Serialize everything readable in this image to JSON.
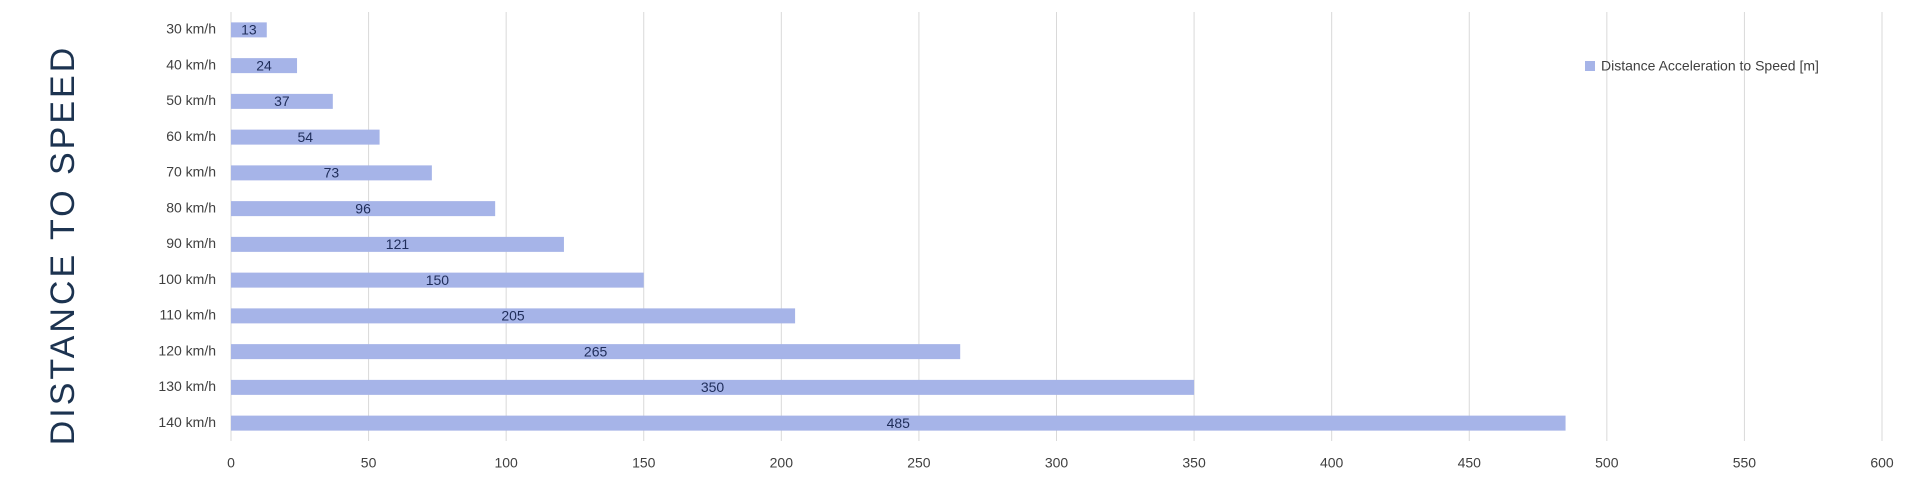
{
  "chart_data": {
    "type": "bar",
    "orientation": "horizontal",
    "title": "DISTANCE TO SPEED",
    "categories": [
      "30 km/h",
      "40 km/h",
      "50 km/h",
      "60 km/h",
      "70 km/h",
      "80 km/h",
      "90 km/h",
      "100 km/h",
      "110 km/h",
      "120 km/h",
      "130 km/h",
      "140 km/h"
    ],
    "series": [
      {
        "name": "Distance Acceleration to Speed [m]",
        "color": "#a6b4e8",
        "values": [
          13,
          24,
          37,
          54,
          73,
          96,
          121,
          150,
          205,
          265,
          350,
          485
        ]
      }
    ],
    "xlim": [
      0,
      600
    ],
    "xticks": [
      0,
      50,
      100,
      150,
      200,
      250,
      300,
      350,
      400,
      450,
      500,
      550,
      600
    ],
    "grid": true,
    "legend": "top-right"
  }
}
